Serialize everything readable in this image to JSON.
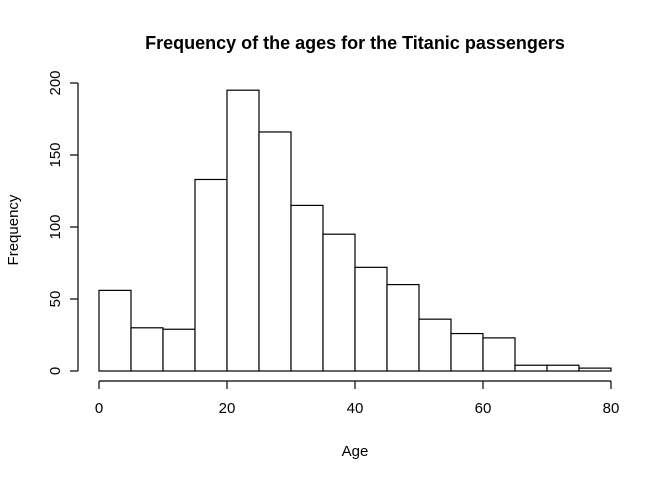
{
  "chart_data": {
    "type": "bar",
    "title": "Frequency of the ages for the Titanic passengers",
    "xlabel": "Age",
    "ylabel": "Frequency",
    "xlim": [
      0,
      80
    ],
    "ylim": [
      0,
      200
    ],
    "xticks": [
      0,
      20,
      40,
      60,
      80
    ],
    "yticks": [
      0,
      50,
      100,
      150,
      200
    ],
    "bins": [
      {
        "from": 0,
        "to": 5,
        "count": 56
      },
      {
        "from": 5,
        "to": 10,
        "count": 30
      },
      {
        "from": 10,
        "to": 15,
        "count": 29
      },
      {
        "from": 15,
        "to": 20,
        "count": 133
      },
      {
        "from": 20,
        "to": 25,
        "count": 195
      },
      {
        "from": 25,
        "to": 30,
        "count": 166
      },
      {
        "from": 30,
        "to": 35,
        "count": 115
      },
      {
        "from": 35,
        "to": 40,
        "count": 95
      },
      {
        "from": 40,
        "to": 45,
        "count": 72
      },
      {
        "from": 45,
        "to": 50,
        "count": 60
      },
      {
        "from": 50,
        "to": 55,
        "count": 36
      },
      {
        "from": 55,
        "to": 60,
        "count": 26
      },
      {
        "from": 60,
        "to": 65,
        "count": 23
      },
      {
        "from": 65,
        "to": 70,
        "count": 4
      },
      {
        "from": 70,
        "to": 75,
        "count": 4
      },
      {
        "from": 75,
        "to": 80,
        "count": 2
      }
    ],
    "grid": false,
    "legend": "none",
    "colors": {
      "bar_fill": "#ffffff",
      "bar_stroke": "#000000"
    }
  }
}
